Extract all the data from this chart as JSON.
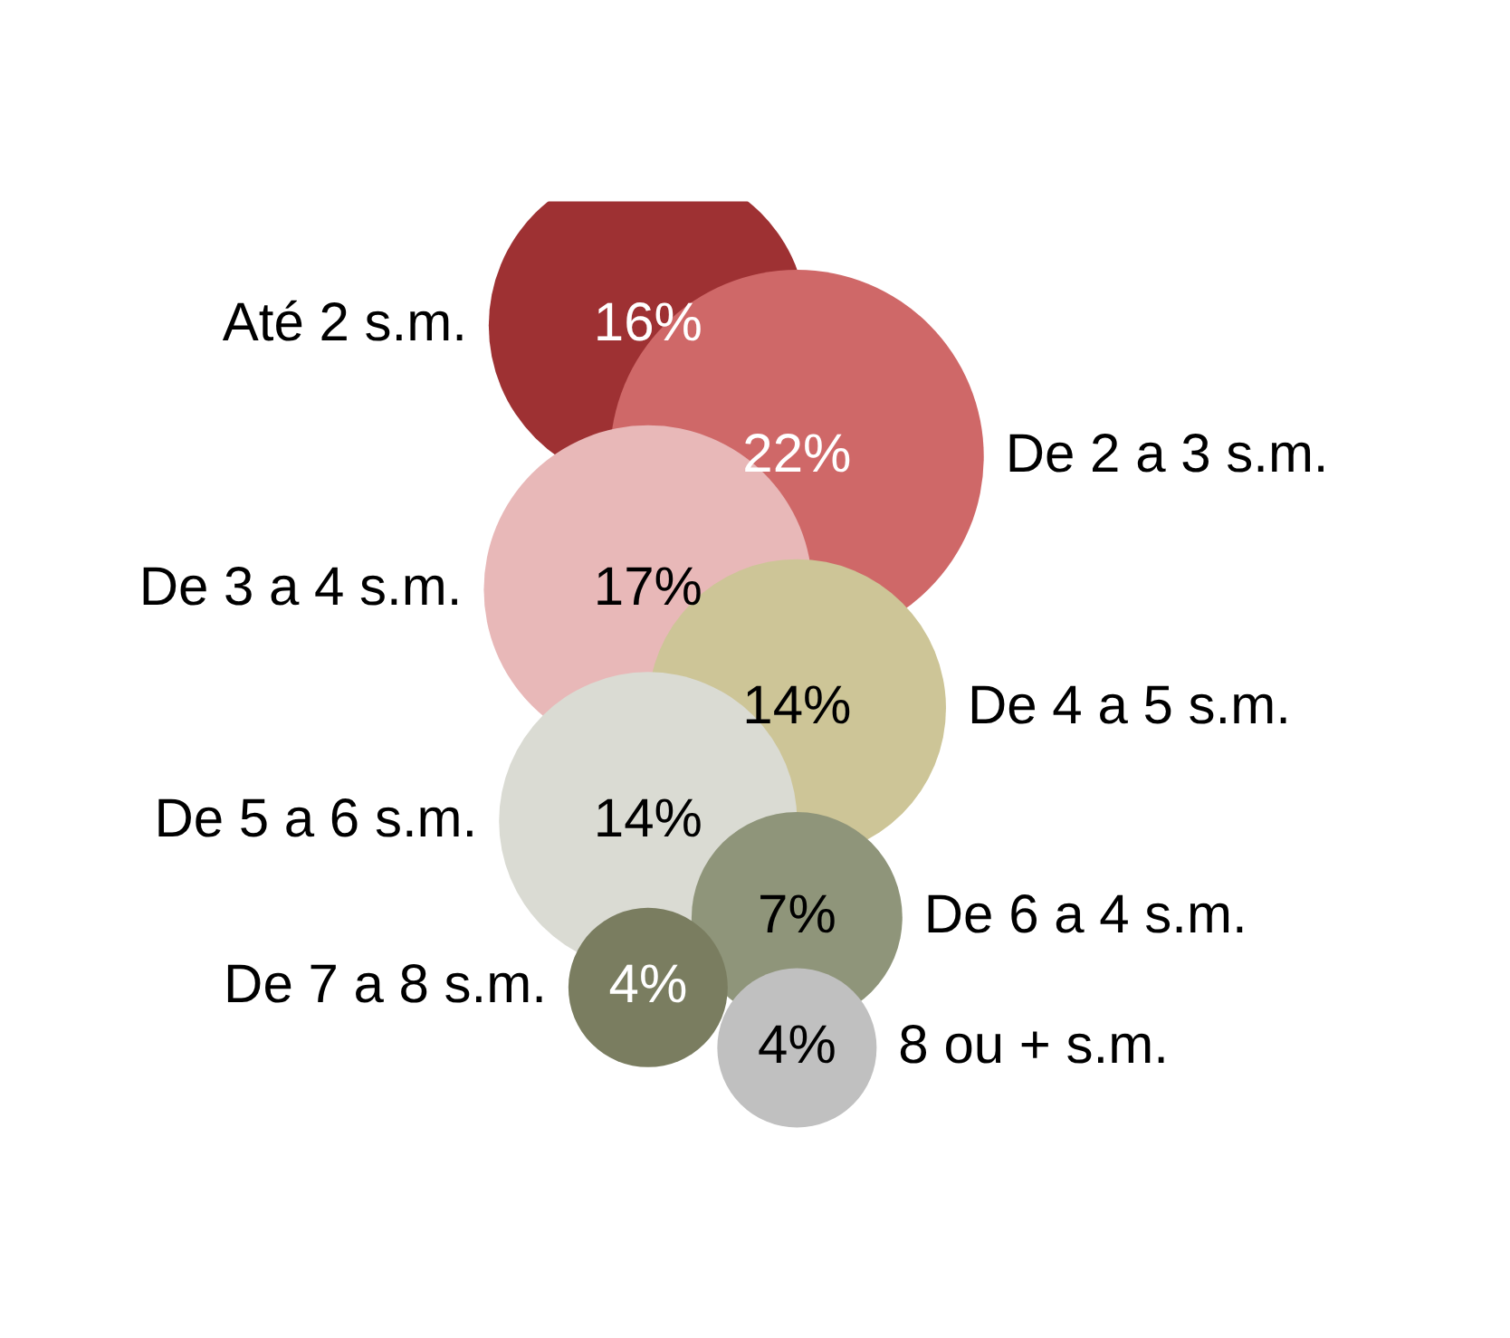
{
  "chart_data": {
    "type": "other",
    "categories": [
      "Até 2 s.m.",
      "De 2 a 3 s.m.",
      "De 3 a 4 s.m.",
      "De 4 a 5 s.m.",
      "De 5 a 6 s.m.",
      "De 6 a 4 s.m.",
      "De 7 a 8 s.m.",
      "8 ou + s.m."
    ],
    "values": [
      16,
      22,
      17,
      14,
      14,
      7,
      4,
      4
    ],
    "colors": [
      "#9e3133",
      "#cf6868",
      "#e8b8b8",
      "#cdc597",
      "#dadbd3",
      "#8f957a",
      "#7a7d60",
      "#c0c0c0"
    ],
    "value_labels": [
      "16%",
      "22%",
      "17%",
      "14%",
      "14%",
      "7%",
      "4%",
      "4%"
    ]
  }
}
